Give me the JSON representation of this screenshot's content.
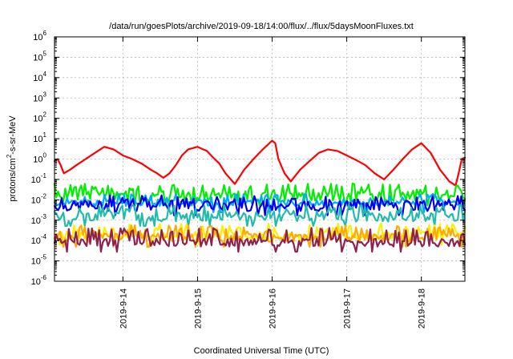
{
  "chart_data": {
    "type": "line",
    "title": "/data/run/goesPlots/archive/2019-09-18/14:00/flux/../flux/5daysMoonFluxes.txt",
    "xlabel": "Coordinated Universal Time (UTC)",
    "ylabel": {
      "prefix": "protons/cm",
      "superscript": "2",
      "suffix": "-s-sr-MeV"
    },
    "y_scale": "log",
    "ylim": [
      1e-06,
      1000000.0
    ],
    "y_ticks": [
      {
        "value": 1e-06,
        "base": "10",
        "exp": "-6"
      },
      {
        "value": 1e-05,
        "base": "10",
        "exp": "-5"
      },
      {
        "value": 0.0001,
        "base": "10",
        "exp": "-4"
      },
      {
        "value": 0.001,
        "base": "10",
        "exp": "-3"
      },
      {
        "value": 0.01,
        "base": "10",
        "exp": "-2"
      },
      {
        "value": 0.1,
        "base": "10",
        "exp": "-1"
      },
      {
        "value": 1,
        "base": "10",
        "exp": "0"
      },
      {
        "value": 10,
        "base": "10",
        "exp": "1"
      },
      {
        "value": 100,
        "base": "10",
        "exp": "2"
      },
      {
        "value": 1000,
        "base": "10",
        "exp": "3"
      },
      {
        "value": 10000,
        "base": "10",
        "exp": "4"
      },
      {
        "value": 100000,
        "base": "10",
        "exp": "5"
      },
      {
        "value": 1000000,
        "base": "10",
        "exp": "6"
      }
    ],
    "x_ticks": [
      "2019-9-14",
      "2019-9-15",
      "2019-9-16",
      "2019-9-17",
      "2019-9-18"
    ],
    "xlim": [
      "2019-09-13T02:00",
      "2019-09-18T14:00"
    ],
    "grid": true,
    "series": [
      {
        "color": "#ff0000",
        "x": [
          "2019-09-13T02:00",
          "2019-09-13T03:00",
          "2019-09-13T04:00",
          "2019-09-13T05:00",
          "2019-09-13T07:00",
          "2019-09-13T09:00",
          "2019-09-13T12:00",
          "2019-09-13T15:00",
          "2019-09-13T18:00",
          "2019-09-13T21:00",
          "2019-09-14T00:00",
          "2019-09-14T03:00",
          "2019-09-14T06:00",
          "2019-09-14T09:00",
          "2019-09-14T11:00",
          "2019-09-14T13:00",
          "2019-09-14T15:00",
          "2019-09-14T17:00",
          "2019-09-14T19:00",
          "2019-09-14T21:00",
          "2019-09-15T00:00",
          "2019-09-15T03:00",
          "2019-09-15T05:00",
          "2019-09-15T07:00",
          "2019-09-15T09:00",
          "2019-09-15T12:00",
          "2019-09-15T15:00",
          "2019-09-15T18:00",
          "2019-09-15T21:00",
          "2019-09-16T00:00",
          "2019-09-16T01:00",
          "2019-09-16T02:00",
          "2019-09-16T04:00",
          "2019-09-16T06:00",
          "2019-09-16T09:00",
          "2019-09-16T12:00",
          "2019-09-16T15:00",
          "2019-09-16T18:00",
          "2019-09-16T21:00",
          "2019-09-17T00:00",
          "2019-09-17T03:00",
          "2019-09-17T06:00",
          "2019-09-17T09:00",
          "2019-09-17T12:00",
          "2019-09-17T15:00",
          "2019-09-17T18:00",
          "2019-09-17T21:00",
          "2019-09-18T00:00",
          "2019-09-18T03:00",
          "2019-09-18T06:00",
          "2019-09-18T09:00",
          "2019-09-18T11:00",
          "2019-09-18T12:00",
          "2019-09-18T13:00",
          "2019-09-18T14:00"
        ],
        "values": [
          0.8,
          1.0,
          0.5,
          0.2,
          0.3,
          0.5,
          1.0,
          2.0,
          4.0,
          3.0,
          1.5,
          1.0,
          0.6,
          0.3,
          0.2,
          0.12,
          0.2,
          0.5,
          1.5,
          3.0,
          4.0,
          2.5,
          1.2,
          0.6,
          0.2,
          0.06,
          0.3,
          1.0,
          3.0,
          8.0,
          6.0,
          1.0,
          0.2,
          0.08,
          0.3,
          0.8,
          2.0,
          3.0,
          2.5,
          1.5,
          0.9,
          0.5,
          0.2,
          0.1,
          0.3,
          1.0,
          3.0,
          6.0,
          2.0,
          0.3,
          0.08,
          0.05,
          0.2,
          1.0,
          1.2
        ]
      },
      {
        "color": "#00ee00",
        "base": 0.015,
        "var": 0.25,
        "spike": 0.045,
        "seed": 3
      },
      {
        "color": "#00aaff",
        "base": 0.007,
        "var": 0.15,
        "spike": 0.014,
        "seed": 11
      },
      {
        "color": "#0000ee",
        "base": 0.005,
        "var": 0.25,
        "spike": 0.012,
        "seed": 7
      },
      {
        "color": "#22bbaa",
        "base": 0.0015,
        "var": 0.25,
        "spike": 0.004,
        "seed": 19
      },
      {
        "color": "#ffee00",
        "base": 0.00018,
        "var": 0.2,
        "spike": 0.0005,
        "seed": 23
      },
      {
        "color": "#ffaa00",
        "base": 0.00014,
        "var": 0.2,
        "spike": 0.0004,
        "seed": 29
      },
      {
        "color": "#8b2252",
        "base": 8e-05,
        "var": 0.2,
        "spike": 0.0003,
        "seed": 31
      }
    ]
  }
}
